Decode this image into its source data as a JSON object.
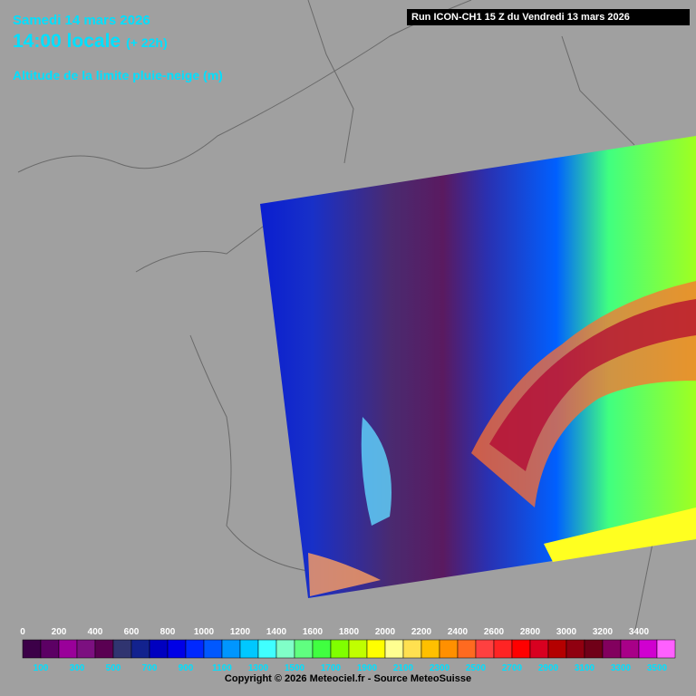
{
  "header": {
    "date": "Samedi 14 mars 2026",
    "time": "14:00 locale",
    "lead": "(+ 22h)",
    "product": "Altitude de la limite pluie-neige (m)"
  },
  "run_info": "Run ICON-CH1 15 Z du Vendredi 13 mars 2026",
  "legend": {
    "top_labels": [
      0,
      200,
      400,
      600,
      800,
      1000,
      1200,
      1400,
      1600,
      1800,
      2000,
      2200,
      2400,
      2600,
      2800,
      3000,
      3200,
      3400
    ],
    "bottom_labels": [
      100,
      300,
      500,
      700,
      900,
      1100,
      1300,
      1500,
      1700,
      1900,
      2100,
      2300,
      2500,
      2700,
      2900,
      3100,
      3300,
      3500
    ],
    "colors": [
      "#3c0048",
      "#5c0064",
      "#9a009a",
      "#7c1080",
      "#5a0052",
      "#303470",
      "#12228e",
      "#0000c0",
      "#0000e6",
      "#0028ff",
      "#0058ff",
      "#0096ff",
      "#00c8ff",
      "#40ffff",
      "#80ffc8",
      "#60ff80",
      "#40ff40",
      "#80ff00",
      "#c0ff00",
      "#ffff00",
      "#ffff90",
      "#ffe050",
      "#ffc000",
      "#ff9000",
      "#ff6a20",
      "#ff4040",
      "#ff2424",
      "#ff0000",
      "#d80020",
      "#b40000",
      "#900010",
      "#700018",
      "#82005e",
      "#a80088",
      "#d000d0",
      "#ff60ff"
    ]
  },
  "copyright": "Copyright © 2026 Meteociel.fr - Source MeteoSuisse"
}
